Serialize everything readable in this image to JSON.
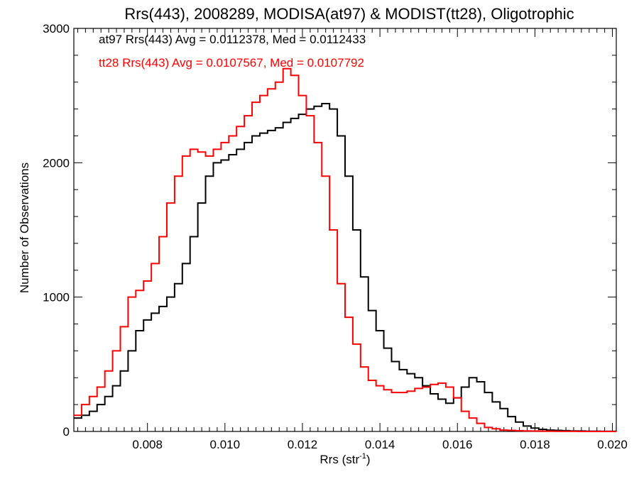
{
  "chart_data": {
    "type": "histogram",
    "title": "Rrs(443), 2008289, MODISA(at97) & MODIST(tt28), Oligotrophic",
    "xlabel": "Rrs (str",
    "xlabel_sup": "-1",
    "xlabel_end": ")",
    "ylabel": "Number of Observations",
    "xlim": [
      0.0061,
      0.0201
    ],
    "ylim": [
      0,
      3000
    ],
    "x_ticks": [
      "0.008",
      "0.010",
      "0.012",
      "0.014",
      "0.016",
      "0.018",
      "0.020"
    ],
    "x_tick_values": [
      0.008,
      0.01,
      0.012,
      0.014,
      0.016,
      0.018,
      0.02
    ],
    "y_ticks": [
      "0",
      "1000",
      "2000",
      "3000"
    ],
    "y_tick_values": [
      0,
      1000,
      2000,
      3000
    ],
    "annotations": [
      {
        "text": "at97 Rrs(443) Avg = 0.0112378, Med = 0.0112433",
        "color": "#000000"
      },
      {
        "text": "tt28 Rrs(443) Avg = 0.0107567, Med = 0.0107792",
        "color": "#ff0000"
      }
    ],
    "series": [
      {
        "name": "at97",
        "color": "#000000",
        "x": [
          0.0061,
          0.0063,
          0.0065,
          0.0067,
          0.0069,
          0.0071,
          0.0073,
          0.0075,
          0.0077,
          0.0079,
          0.0081,
          0.0083,
          0.0085,
          0.0087,
          0.0089,
          0.0091,
          0.0093,
          0.0095,
          0.0097,
          0.0099,
          0.0101,
          0.0103,
          0.0105,
          0.0107,
          0.0109,
          0.0111,
          0.0113,
          0.0115,
          0.0117,
          0.0119,
          0.0121,
          0.0123,
          0.0125,
          0.0127,
          0.0129,
          0.0131,
          0.0133,
          0.0135,
          0.0137,
          0.0139,
          0.0141,
          0.0143,
          0.0145,
          0.0147,
          0.0149,
          0.0151,
          0.0153,
          0.0155,
          0.0157,
          0.0159,
          0.0161,
          0.0163,
          0.0165,
          0.0167,
          0.0169,
          0.0171,
          0.0173,
          0.0175,
          0.0177,
          0.0179,
          0.0181,
          0.0183,
          0.0185,
          0.0187,
          0.0189,
          0.0191,
          0.0193,
          0.0195,
          0.0197,
          0.0199
        ],
        "y": [
          100,
          120,
          150,
          200,
          260,
          340,
          450,
          600,
          750,
          830,
          880,
          930,
          1000,
          1100,
          1250,
          1450,
          1700,
          1900,
          2000,
          2020,
          2060,
          2100,
          2150,
          2200,
          2220,
          2240,
          2260,
          2300,
          2330,
          2360,
          2400,
          2420,
          2440,
          2400,
          2200,
          1900,
          1500,
          1150,
          900,
          750,
          620,
          520,
          460,
          430,
          400,
          340,
          280,
          240,
          210,
          250,
          330,
          400,
          370,
          290,
          220,
          170,
          110,
          70,
          40,
          25,
          15,
          10,
          8,
          6,
          4,
          3,
          2,
          2,
          1,
          1
        ]
      },
      {
        "name": "tt28",
        "color": "#ff0000",
        "x": [
          0.0061,
          0.0063,
          0.0065,
          0.0067,
          0.0069,
          0.0071,
          0.0073,
          0.0075,
          0.0077,
          0.0079,
          0.0081,
          0.0083,
          0.0085,
          0.0087,
          0.0089,
          0.0091,
          0.0093,
          0.0095,
          0.0097,
          0.0099,
          0.0101,
          0.0103,
          0.0105,
          0.0107,
          0.0109,
          0.0111,
          0.0113,
          0.0115,
          0.0117,
          0.0119,
          0.0121,
          0.0123,
          0.0125,
          0.0127,
          0.0129,
          0.0131,
          0.0133,
          0.0135,
          0.0137,
          0.0139,
          0.0141,
          0.0143,
          0.0145,
          0.0147,
          0.0149,
          0.0151,
          0.0153,
          0.0155,
          0.0157,
          0.0159,
          0.0161,
          0.0163,
          0.0165,
          0.0167,
          0.0169,
          0.0171,
          0.0173,
          0.0175,
          0.0177,
          0.0179,
          0.0181,
          0.0183,
          0.0185,
          0.0187,
          0.0189,
          0.0191,
          0.0193,
          0.0195,
          0.0197,
          0.0199
        ],
        "y": [
          120,
          200,
          260,
          330,
          450,
          600,
          780,
          1000,
          1050,
          1120,
          1250,
          1450,
          1700,
          1900,
          2050,
          2100,
          2080,
          2050,
          2100,
          2150,
          2200,
          2270,
          2350,
          2450,
          2500,
          2550,
          2600,
          2700,
          2650,
          2500,
          2350,
          2150,
          1900,
          1500,
          1100,
          850,
          650,
          480,
          380,
          340,
          310,
          290,
          290,
          300,
          320,
          330,
          350,
          360,
          330,
          250,
          150,
          100,
          60,
          30,
          20,
          10,
          8,
          6,
          4,
          3,
          2,
          2,
          1,
          1,
          1,
          0,
          0,
          0,
          0,
          0
        ]
      }
    ]
  }
}
